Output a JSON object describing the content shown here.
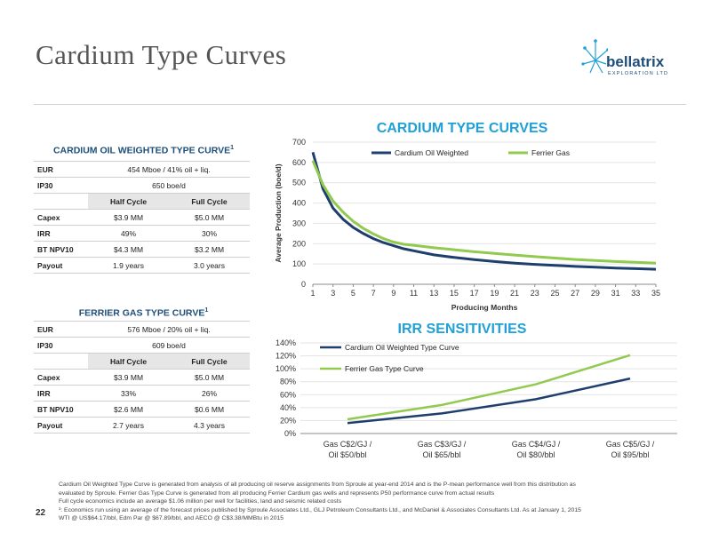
{
  "page": {
    "title": "Cardium Type Curves",
    "page_number": "22",
    "logo": {
      "name": "bellatrix",
      "tagline": "EXPLORATION LTD"
    }
  },
  "oil_table": {
    "title": "CARDIUM OIL WEIGHTED TYPE CURVE",
    "title_sup": "1",
    "eur_label": "EUR",
    "eur_value": "454 Mboe / 41% oil + liq.",
    "ip30_label": "IP30",
    "ip30_value": "650 boe/d",
    "col_half": "Half Cycle",
    "col_full": "Full Cycle",
    "rows": [
      {
        "label": "Capex",
        "half": "$3.9 MM",
        "full": "$5.0 MM"
      },
      {
        "label": "IRR",
        "half": "49%",
        "full": "30%"
      },
      {
        "label": "BT NPV10",
        "half": "$4.3 MM",
        "full": "$3.2 MM"
      },
      {
        "label": "Payout",
        "half": "1.9 years",
        "full": "3.0 years"
      }
    ]
  },
  "gas_table": {
    "title": "FERRIER GAS TYPE CURVE",
    "title_sup": "1",
    "eur_label": "EUR",
    "eur_value": "576 Mboe / 20% oil + liq.",
    "ip30_label": "IP30",
    "ip30_value": "609 boe/d",
    "col_half": "Half Cycle",
    "col_full": "Full Cycle",
    "rows": [
      {
        "label": "Capex",
        "half": "$3.9 MM",
        "full": "$5.0 MM"
      },
      {
        "label": "IRR",
        "half": "33%",
        "full": "26%"
      },
      {
        "label": "BT NPV10",
        "half": "$2.6 MM",
        "full": "$0.6 MM"
      },
      {
        "label": "Payout",
        "half": "2.7 years",
        "full": "4.3 years"
      }
    ]
  },
  "chart_data": [
    {
      "type": "line",
      "title": "CARDIUM TYPE CURVES",
      "xlabel": "Producing Months",
      "ylabel": "Average Production (boe/d)",
      "xlim": [
        1,
        35
      ],
      "ylim": [
        0,
        700
      ],
      "xticks": [
        1,
        3,
        5,
        7,
        9,
        11,
        13,
        15,
        17,
        19,
        21,
        23,
        25,
        27,
        29,
        31,
        33,
        35
      ],
      "yticks": [
        0,
        100,
        200,
        300,
        400,
        500,
        600,
        700
      ],
      "legend": "top",
      "series": [
        {
          "name": "Cardium Oil Weighted",
          "color": "#1e3f6e",
          "x": [
            1,
            2,
            3,
            4,
            5,
            6,
            7,
            8,
            9,
            10,
            11,
            13,
            15,
            17,
            19,
            21,
            23,
            25,
            27,
            29,
            31,
            33,
            35
          ],
          "y": [
            650,
            470,
            375,
            320,
            280,
            250,
            225,
            205,
            190,
            175,
            165,
            145,
            132,
            121,
            112,
            104,
            98,
            93,
            88,
            84,
            80,
            77,
            74
          ]
        },
        {
          "name": "Ferrier Gas",
          "color": "#92c94f",
          "x": [
            1,
            2,
            3,
            4,
            5,
            6,
            7,
            8,
            9,
            10,
            11,
            13,
            15,
            17,
            19,
            21,
            23,
            25,
            27,
            29,
            31,
            33,
            35
          ],
          "y": [
            609,
            490,
            410,
            355,
            310,
            275,
            248,
            225,
            208,
            197,
            192,
            180,
            170,
            160,
            152,
            144,
            136,
            129,
            122,
            117,
            112,
            108,
            104
          ]
        }
      ]
    },
    {
      "type": "line",
      "title": "IRR SENSITIVITIES",
      "categories": [
        "Gas C$2/GJ / Oil $50/bbl",
        "Gas C$3/GJ / Oil $65/bbl",
        "Gas C$4/GJ / Oil $80/bbl",
        "Gas C$5/GJ / Oil $95/bbl"
      ],
      "category_lines": [
        [
          "Gas C$2/GJ /",
          "Oil $50/bbl"
        ],
        [
          "Gas C$3/GJ /",
          "Oil $65/bbl"
        ],
        [
          "Gas C$4/GJ /",
          "Oil $80/bbl"
        ],
        [
          "Gas C$5/GJ /",
          "Oil $95/bbl"
        ]
      ],
      "ylim": [
        0,
        140
      ],
      "yticks": [
        "0%",
        "20%",
        "40%",
        "60%",
        "80%",
        "100%",
        "120%",
        "140%"
      ],
      "legend": "top-left",
      "series": [
        {
          "name": "Cardium Oil Weighted Type Curve",
          "color": "#1e3f6e",
          "values": [
            16,
            31,
            53,
            85
          ]
        },
        {
          "name": "Ferrier Gas Type Curve",
          "color": "#92c94f",
          "values": [
            22,
            44,
            76,
            121
          ]
        }
      ]
    }
  ],
  "footnotes": [
    "Cardium Oil Weighted Type Curve is generated from analysis of all producing oil reserve assignments from Sproule at year-end 2014 and is the P-mean performance well from this distribution as",
    "evaluated by Sproule.  Ferrier Gas Type Curve is generated from all producing Ferrier Cardium gas wells and represents P50 performance curve from actual results",
    "Full cycle economics include an average $1.06 million per well for facilities, land and seismic related costs",
    "¹: Economics run using an average of the forecast prices published by Sproule Associates Ltd., GLJ Petroleum Consultants Ltd., and McDaniel & Associates Consultants Ltd. As at January 1, 2015",
    "WTI @ US$64.17/bbl, Edm Par @ $67.89/bbl, and AECO @ C$3.38/MMBtu in 2015"
  ]
}
